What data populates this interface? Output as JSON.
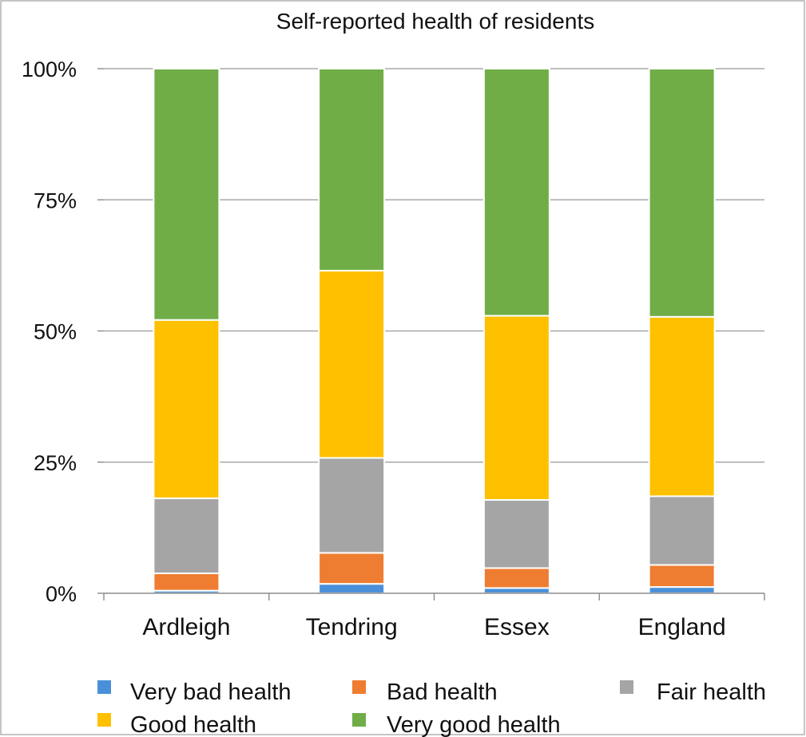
{
  "chart_data": {
    "type": "bar",
    "stacked": true,
    "normalized": true,
    "title": "Self-reported health of residents",
    "xlabel": "",
    "ylabel": "",
    "ylim": [
      0,
      100
    ],
    "yticks": [
      "0%",
      "25%",
      "50%",
      "75%",
      "100%"
    ],
    "ytick_values": [
      0,
      25,
      50,
      75,
      100
    ],
    "grid": true,
    "legend_position": "bottom",
    "categories": [
      "Ardleigh",
      "Tendring",
      "Essex",
      "England"
    ],
    "series": [
      {
        "name": "Very bad health",
        "color": "#4a90d9",
        "values": [
          0.5,
          1.8,
          1.0,
          1.2
        ]
      },
      {
        "name": "Bad health",
        "color": "#ee7d31",
        "values": [
          3.3,
          5.9,
          3.8,
          4.2
        ]
      },
      {
        "name": "Fair health",
        "color": "#a5a5a5",
        "values": [
          14.3,
          18.1,
          13.0,
          13.1
        ]
      },
      {
        "name": "Good health",
        "color": "#ffc000",
        "values": [
          34.0,
          35.7,
          35.1,
          34.2
        ]
      },
      {
        "name": "Very good health",
        "color": "#70ad47",
        "values": [
          47.9,
          38.5,
          47.1,
          47.3
        ]
      }
    ]
  }
}
